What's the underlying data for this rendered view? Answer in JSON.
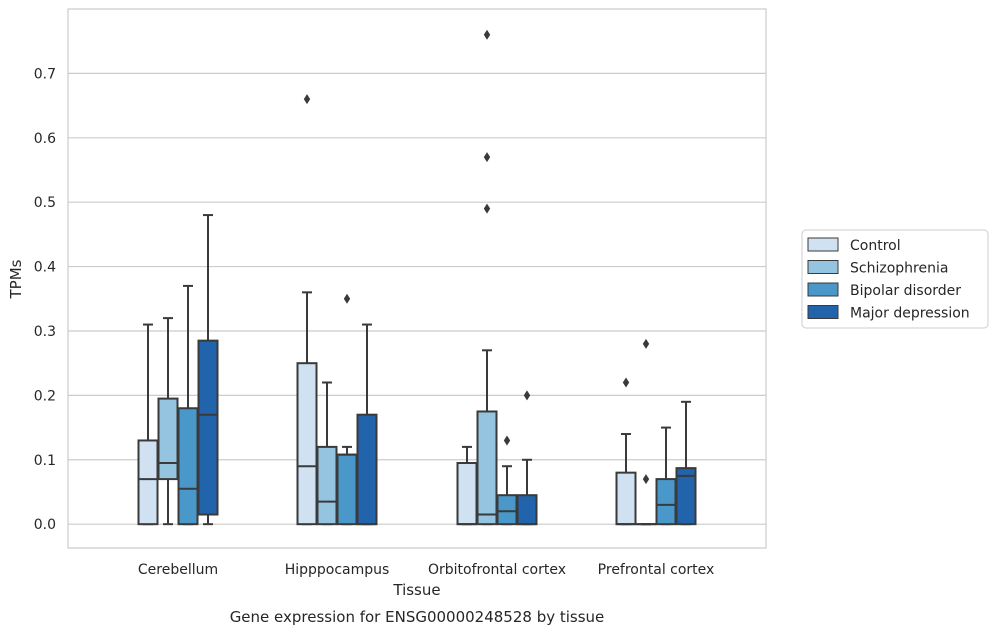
{
  "caption": "Gene expression for ENSG00000248528 by tissue",
  "chart_data": {
    "type": "box",
    "xlabel": "Tissue",
    "ylabel": "TPMs",
    "ylim": [
      -0.037,
      0.8
    ],
    "yticks": [
      0.0,
      0.1,
      0.2,
      0.3,
      0.4,
      0.5,
      0.6,
      0.7
    ],
    "grid": "horizontal",
    "legend_position": "right",
    "categories": [
      "Cerebellum",
      "Hipppocampus",
      "Orbitofrontal cortex",
      "Prefrontal cortex"
    ],
    "series": [
      {
        "name": "Control",
        "color": "#d0e1f2",
        "boxes": [
          {
            "whislo": 0.0,
            "q1": 0.0,
            "med": 0.07,
            "q3": 0.13,
            "whishi": 0.31,
            "fliers": []
          },
          {
            "whislo": 0.0,
            "q1": 0.0,
            "med": 0.09,
            "q3": 0.25,
            "whishi": 0.36,
            "fliers": [
              0.66
            ]
          },
          {
            "whislo": 0.0,
            "q1": 0.0,
            "med": 0.0,
            "q3": 0.095,
            "whishi": 0.12,
            "fliers": []
          },
          {
            "whislo": 0.0,
            "q1": 0.0,
            "med": 0.0,
            "q3": 0.08,
            "whishi": 0.14,
            "fliers": [
              0.22
            ]
          }
        ]
      },
      {
        "name": "Schizophrenia",
        "color": "#94c4df",
        "boxes": [
          {
            "whislo": 0.0,
            "q1": 0.07,
            "med": 0.095,
            "q3": 0.195,
            "whishi": 0.32,
            "fliers": []
          },
          {
            "whislo": 0.0,
            "q1": 0.0,
            "med": 0.035,
            "q3": 0.12,
            "whishi": 0.22,
            "fliers": []
          },
          {
            "whislo": 0.0,
            "q1": 0.0,
            "med": 0.015,
            "q3": 0.175,
            "whishi": 0.27,
            "fliers": [
              0.49,
              0.57,
              0.76
            ]
          },
          {
            "whislo": 0.0,
            "q1": 0.0,
            "med": 0.0,
            "q3": 0.0,
            "whishi": 0.0,
            "fliers": [
              0.07,
              0.28
            ]
          }
        ]
      },
      {
        "name": "Bipolar disorder",
        "color": "#4a98c9",
        "boxes": [
          {
            "whislo": 0.0,
            "q1": 0.0,
            "med": 0.055,
            "q3": 0.18,
            "whishi": 0.37,
            "fliers": []
          },
          {
            "whislo": 0.0,
            "q1": 0.0,
            "med": 0.108,
            "q3": 0.108,
            "whishi": 0.12,
            "fliers": [
              0.35
            ]
          },
          {
            "whislo": 0.0,
            "q1": 0.0,
            "med": 0.02,
            "q3": 0.045,
            "whishi": 0.09,
            "fliers": [
              0.13
            ]
          },
          {
            "whislo": 0.0,
            "q1": 0.0,
            "med": 0.03,
            "q3": 0.07,
            "whishi": 0.15,
            "fliers": []
          }
        ]
      },
      {
        "name": "Major depression",
        "color": "#2164ab",
        "boxes": [
          {
            "whislo": 0.0,
            "q1": 0.015,
            "med": 0.17,
            "q3": 0.285,
            "whishi": 0.48,
            "fliers": []
          },
          {
            "whislo": 0.0,
            "q1": 0.0,
            "med": 0.0,
            "q3": 0.17,
            "whishi": 0.31,
            "fliers": []
          },
          {
            "whislo": 0.0,
            "q1": 0.0,
            "med": 0.0,
            "q3": 0.045,
            "whishi": 0.1,
            "fliers": [
              0.2
            ]
          },
          {
            "whislo": 0.0,
            "q1": 0.0,
            "med": 0.075,
            "q3": 0.087,
            "whishi": 0.19,
            "fliers": []
          }
        ]
      }
    ]
  }
}
